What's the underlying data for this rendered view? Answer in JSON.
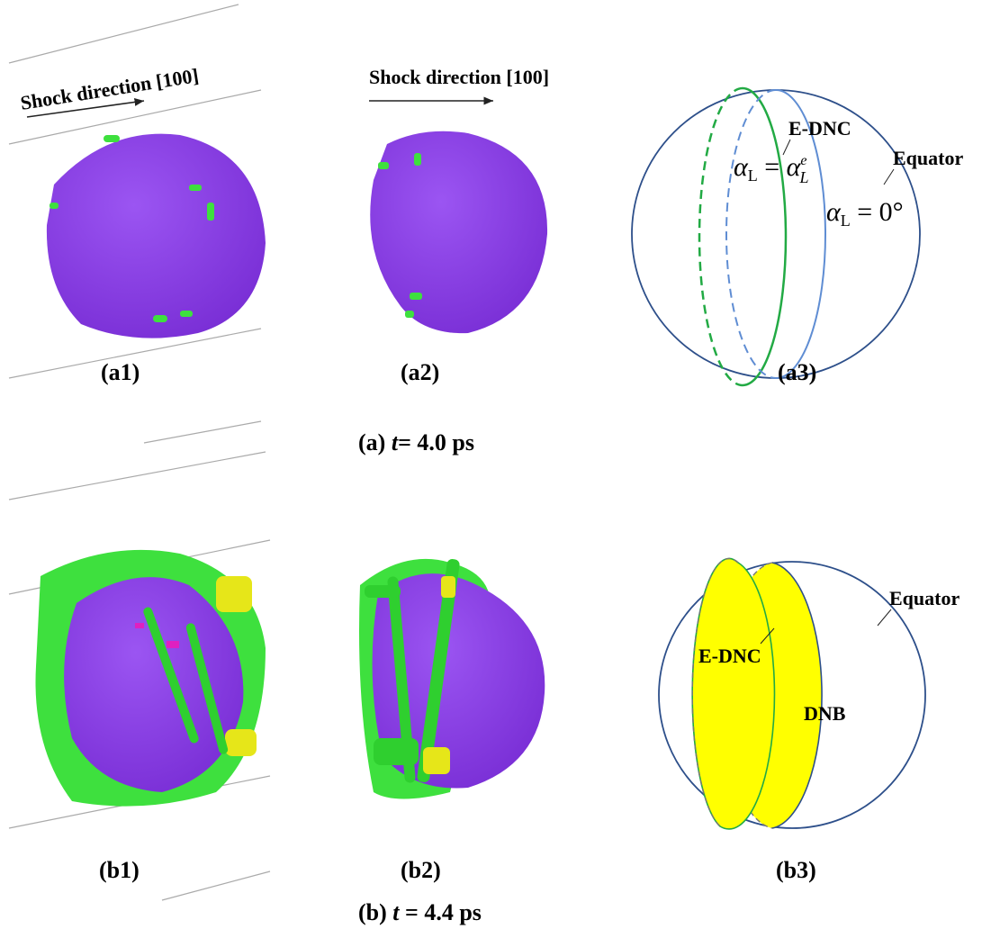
{
  "panel_a": {
    "a1": {
      "shock_label": "Shock direction [100]",
      "caption": "(a1)"
    },
    "a2": {
      "shock_label": "Shock direction [100]",
      "caption": "(a2)"
    },
    "a3": {
      "edn_label": "E-DNC",
      "formula_1": {
        "symbol": "α",
        "sub": "L",
        "eq": " = ",
        "rhs_symbol": "α",
        "rhs_sup": "e",
        "rhs_sub": "L"
      },
      "equator_label": "Equator",
      "formula_2": {
        "symbol": "α",
        "sub": "L",
        "eq": " = 0°"
      },
      "caption": "(a3)"
    },
    "caption": {
      "label": "(a) ",
      "var": "t",
      "rest": "= 4.0 ps"
    }
  },
  "panel_b": {
    "b1": {
      "caption": "(b1)"
    },
    "b2": {
      "caption": "(b2)"
    },
    "b3": {
      "equator_label": "Equator",
      "edn_label": "E-DNC",
      "dnb_label": "DNB",
      "caption": "(b3)"
    },
    "caption": {
      "label": "(b) ",
      "var": "t",
      "rest": " = 4.4 ps"
    }
  }
}
